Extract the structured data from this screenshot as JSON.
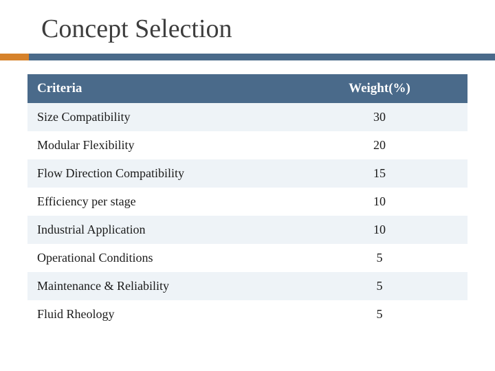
{
  "title": "Concept Selection",
  "accent": {
    "orange": "#d6822b",
    "blue": "#4a6a8a"
  },
  "table": {
    "columns": [
      "Criteria",
      "Weight(%)"
    ],
    "rows": [
      [
        "Size Compatibility",
        "30"
      ],
      [
        "Modular Flexibility",
        "20"
      ],
      [
        "Flow Direction Compatibility",
        "15"
      ],
      [
        "Efficiency per stage",
        "10"
      ],
      [
        "Industrial Application",
        "10"
      ],
      [
        "Operational Conditions",
        "5"
      ],
      [
        "Maintenance & Reliability",
        "5"
      ],
      [
        "Fluid Rheology",
        "5"
      ]
    ]
  }
}
